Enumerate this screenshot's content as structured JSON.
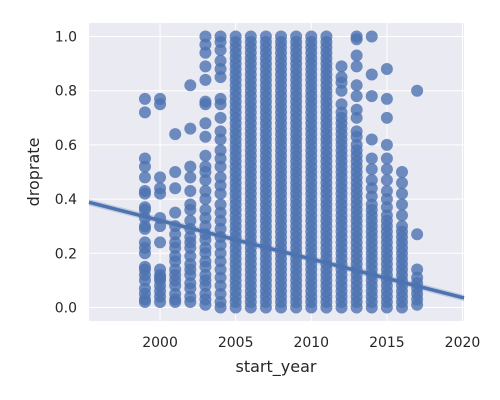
{
  "chart_data": {
    "type": "scatter",
    "title": "",
    "xlabel": "start_year",
    "ylabel": "droprate",
    "xlim": [
      1995.3,
      2020.1
    ],
    "ylim": [
      -0.05,
      1.05
    ],
    "x_ticks": [
      2000,
      2005,
      2010,
      2015,
      2020
    ],
    "y_ticks": [
      0.0,
      0.2,
      0.4,
      0.6,
      0.8,
      1.0
    ],
    "x_tick_labels": [
      "2000",
      "2005",
      "2010",
      "2015",
      "2020"
    ],
    "y_tick_labels": [
      "0.0",
      "0.2",
      "0.4",
      "0.6",
      "0.8",
      "1.0"
    ],
    "grid": true,
    "colors": {
      "points": "#4c72b0",
      "line": "#4c72b0",
      "band": "#4c72b0",
      "background": "#eaeaf2"
    },
    "series": [
      {
        "x": 1999,
        "y": [
          0.02,
          0.03,
          0.05,
          0.07,
          0.1,
          0.12,
          0.14,
          0.15,
          0.2,
          0.22,
          0.24,
          0.29,
          0.3,
          0.33,
          0.36,
          0.37,
          0.42,
          0.43,
          0.48,
          0.52,
          0.55,
          0.72,
          0.77
        ]
      },
      {
        "x": 2000,
        "y": [
          0.02,
          0.04,
          0.06,
          0.08,
          0.1,
          0.11,
          0.12,
          0.14,
          0.24,
          0.3,
          0.33,
          0.42,
          0.44,
          0.48,
          0.75,
          0.77
        ]
      },
      {
        "x": 2001,
        "y": [
          0.02,
          0.03,
          0.05,
          0.08,
          0.1,
          0.12,
          0.14,
          0.17,
          0.19,
          0.22,
          0.24,
          0.27,
          0.3,
          0.35,
          0.44,
          0.5,
          0.64
        ]
      },
      {
        "x": 2002,
        "y": [
          0.02,
          0.04,
          0.07,
          0.09,
          0.12,
          0.14,
          0.16,
          0.19,
          0.22,
          0.24,
          0.26,
          0.29,
          0.32,
          0.36,
          0.38,
          0.43,
          0.48,
          0.52,
          0.66,
          0.82
        ]
      },
      {
        "x": 2003,
        "y": [
          0.01,
          0.03,
          0.05,
          0.08,
          0.1,
          0.12,
          0.15,
          0.17,
          0.2,
          0.22,
          0.25,
          0.27,
          0.3,
          0.33,
          0.36,
          0.4,
          0.43,
          0.47,
          0.5,
          0.52,
          0.56,
          0.63,
          0.68,
          0.75,
          0.76,
          0.84,
          0.89,
          0.94,
          0.97,
          1.0
        ]
      },
      {
        "x": 2004,
        "y": [
          0.0,
          0.02,
          0.05,
          0.08,
          0.11,
          0.14,
          0.17,
          0.2,
          0.23,
          0.26,
          0.29,
          0.32,
          0.35,
          0.38,
          0.42,
          0.45,
          0.48,
          0.52,
          0.55,
          0.58,
          0.62,
          0.65,
          0.7,
          0.75,
          0.77,
          0.85,
          0.88,
          0.91,
          0.95,
          0.98,
          1.0
        ]
      },
      {
        "x": 2005,
        "y": [
          0.0,
          0.02,
          0.04,
          0.06,
          0.08,
          0.1,
          0.12,
          0.14,
          0.16,
          0.18,
          0.2,
          0.22,
          0.24,
          0.26,
          0.28,
          0.3,
          0.32,
          0.34,
          0.36,
          0.38,
          0.4,
          0.42,
          0.44,
          0.46,
          0.48,
          0.5,
          0.52,
          0.54,
          0.56,
          0.58,
          0.6,
          0.62,
          0.64,
          0.66,
          0.68,
          0.7,
          0.72,
          0.74,
          0.76,
          0.78,
          0.8,
          0.82,
          0.84,
          0.86,
          0.88,
          0.9,
          0.92,
          0.94,
          0.96,
          0.98,
          1.0
        ]
      },
      {
        "x": 2006,
        "y": [
          0.0,
          0.02,
          0.04,
          0.06,
          0.08,
          0.1,
          0.12,
          0.14,
          0.16,
          0.18,
          0.2,
          0.22,
          0.24,
          0.26,
          0.28,
          0.3,
          0.32,
          0.34,
          0.36,
          0.38,
          0.4,
          0.42,
          0.44,
          0.46,
          0.48,
          0.5,
          0.52,
          0.54,
          0.56,
          0.58,
          0.6,
          0.62,
          0.64,
          0.66,
          0.68,
          0.7,
          0.72,
          0.74,
          0.76,
          0.78,
          0.8,
          0.82,
          0.84,
          0.86,
          0.88,
          0.9,
          0.92,
          0.94,
          0.96,
          0.98,
          1.0
        ]
      },
      {
        "x": 2007,
        "y": [
          0.0,
          0.02,
          0.04,
          0.06,
          0.08,
          0.1,
          0.12,
          0.14,
          0.16,
          0.18,
          0.2,
          0.22,
          0.24,
          0.26,
          0.28,
          0.3,
          0.32,
          0.34,
          0.36,
          0.38,
          0.4,
          0.42,
          0.44,
          0.46,
          0.48,
          0.5,
          0.52,
          0.54,
          0.56,
          0.58,
          0.6,
          0.62,
          0.64,
          0.66,
          0.68,
          0.7,
          0.72,
          0.74,
          0.76,
          0.78,
          0.8,
          0.82,
          0.84,
          0.86,
          0.88,
          0.9,
          0.92,
          0.94,
          0.96,
          0.98,
          1.0
        ]
      },
      {
        "x": 2008,
        "y": [
          0.0,
          0.02,
          0.04,
          0.06,
          0.08,
          0.1,
          0.12,
          0.14,
          0.16,
          0.18,
          0.2,
          0.22,
          0.24,
          0.26,
          0.28,
          0.3,
          0.32,
          0.34,
          0.36,
          0.38,
          0.4,
          0.42,
          0.44,
          0.46,
          0.48,
          0.5,
          0.52,
          0.54,
          0.56,
          0.58,
          0.6,
          0.62,
          0.64,
          0.66,
          0.68,
          0.7,
          0.72,
          0.74,
          0.76,
          0.78,
          0.8,
          0.82,
          0.84,
          0.86,
          0.88,
          0.9,
          0.92,
          0.94,
          0.96,
          0.98,
          1.0
        ]
      },
      {
        "x": 2009,
        "y": [
          0.0,
          0.02,
          0.04,
          0.06,
          0.08,
          0.1,
          0.12,
          0.14,
          0.16,
          0.18,
          0.2,
          0.22,
          0.24,
          0.26,
          0.28,
          0.3,
          0.32,
          0.34,
          0.36,
          0.38,
          0.4,
          0.42,
          0.44,
          0.46,
          0.48,
          0.5,
          0.52,
          0.54,
          0.56,
          0.58,
          0.6,
          0.62,
          0.64,
          0.66,
          0.68,
          0.7,
          0.72,
          0.74,
          0.76,
          0.78,
          0.8,
          0.82,
          0.84,
          0.86,
          0.88,
          0.9,
          0.92,
          0.94,
          0.96,
          0.98,
          1.0
        ]
      },
      {
        "x": 2010,
        "y": [
          0.0,
          0.02,
          0.04,
          0.06,
          0.08,
          0.1,
          0.12,
          0.14,
          0.16,
          0.18,
          0.2,
          0.22,
          0.24,
          0.26,
          0.28,
          0.3,
          0.32,
          0.34,
          0.36,
          0.38,
          0.4,
          0.42,
          0.44,
          0.46,
          0.48,
          0.5,
          0.52,
          0.54,
          0.56,
          0.58,
          0.6,
          0.62,
          0.64,
          0.66,
          0.68,
          0.7,
          0.72,
          0.74,
          0.76,
          0.78,
          0.8,
          0.82,
          0.84,
          0.86,
          0.88,
          0.9,
          0.92,
          0.94,
          0.96,
          0.98,
          1.0
        ]
      },
      {
        "x": 2011,
        "y": [
          0.0,
          0.02,
          0.04,
          0.06,
          0.08,
          0.1,
          0.12,
          0.14,
          0.16,
          0.18,
          0.2,
          0.22,
          0.24,
          0.26,
          0.28,
          0.3,
          0.32,
          0.34,
          0.36,
          0.38,
          0.4,
          0.42,
          0.44,
          0.46,
          0.48,
          0.5,
          0.52,
          0.54,
          0.56,
          0.58,
          0.6,
          0.62,
          0.64,
          0.66,
          0.68,
          0.7,
          0.72,
          0.74,
          0.76,
          0.78,
          0.8,
          0.82,
          0.84,
          0.86,
          0.88,
          0.9,
          0.92,
          0.94,
          0.96,
          0.98,
          1.0
        ]
      },
      {
        "x": 2012,
        "y": [
          0.0,
          0.02,
          0.04,
          0.06,
          0.08,
          0.1,
          0.12,
          0.14,
          0.16,
          0.18,
          0.2,
          0.22,
          0.24,
          0.26,
          0.28,
          0.3,
          0.32,
          0.34,
          0.36,
          0.38,
          0.4,
          0.42,
          0.44,
          0.46,
          0.48,
          0.5,
          0.52,
          0.54,
          0.56,
          0.58,
          0.6,
          0.62,
          0.64,
          0.66,
          0.68,
          0.7,
          0.72,
          0.75,
          0.8,
          0.83,
          0.85,
          0.89
        ]
      },
      {
        "x": 2013,
        "y": [
          0.0,
          0.02,
          0.04,
          0.06,
          0.08,
          0.1,
          0.12,
          0.14,
          0.16,
          0.18,
          0.2,
          0.22,
          0.24,
          0.26,
          0.28,
          0.3,
          0.32,
          0.34,
          0.36,
          0.38,
          0.4,
          0.42,
          0.44,
          0.46,
          0.48,
          0.5,
          0.52,
          0.54,
          0.56,
          0.58,
          0.6,
          0.63,
          0.65,
          0.7,
          0.73,
          0.78,
          0.82,
          0.89,
          0.93,
          0.99,
          1.0
        ]
      },
      {
        "x": 2014,
        "y": [
          0.0,
          0.02,
          0.04,
          0.06,
          0.08,
          0.1,
          0.12,
          0.14,
          0.16,
          0.18,
          0.2,
          0.22,
          0.24,
          0.26,
          0.28,
          0.3,
          0.32,
          0.34,
          0.36,
          0.38,
          0.41,
          0.44,
          0.47,
          0.51,
          0.55,
          0.62,
          0.78,
          0.86,
          1.0
        ]
      },
      {
        "x": 2015,
        "y": [
          0.0,
          0.02,
          0.04,
          0.06,
          0.08,
          0.1,
          0.12,
          0.14,
          0.16,
          0.18,
          0.2,
          0.22,
          0.24,
          0.26,
          0.28,
          0.3,
          0.32,
          0.34,
          0.37,
          0.4,
          0.43,
          0.47,
          0.51,
          0.55,
          0.6,
          0.7,
          0.77,
          0.88
        ]
      },
      {
        "x": 2016,
        "y": [
          0.0,
          0.02,
          0.04,
          0.06,
          0.08,
          0.1,
          0.12,
          0.14,
          0.16,
          0.18,
          0.2,
          0.22,
          0.24,
          0.26,
          0.28,
          0.3,
          0.34,
          0.38,
          0.42,
          0.46,
          0.5
        ]
      },
      {
        "x": 2017,
        "y": [
          0.01,
          0.03,
          0.05,
          0.07,
          0.09,
          0.11,
          0.14,
          0.27,
          0.8
        ]
      }
    ],
    "regression": {
      "x_start": 1995.3,
      "y_start": 0.388,
      "x_end": 2020.1,
      "y_end": 0.035,
      "ci_halfwidth": 0.012
    }
  }
}
